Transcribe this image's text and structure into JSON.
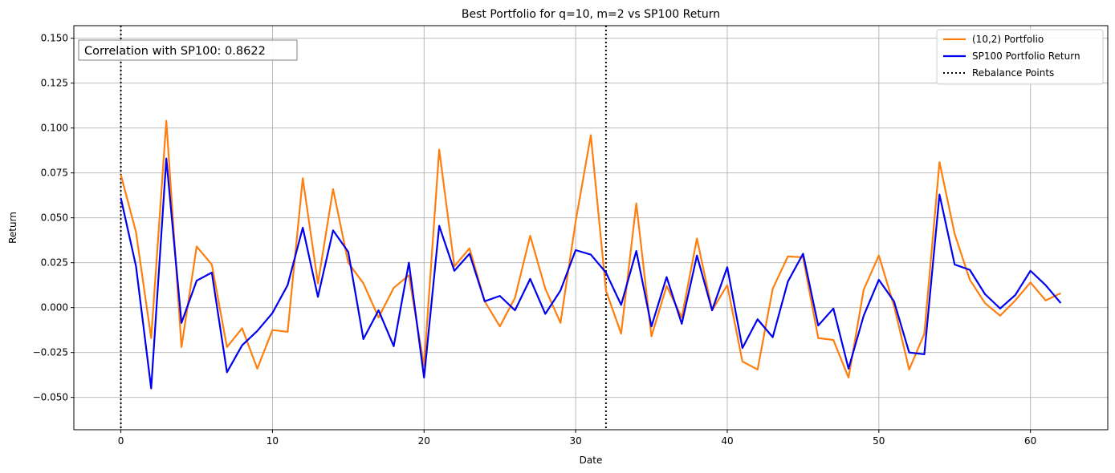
{
  "chart_data": {
    "type": "line",
    "title": "Best Portfolio for q=10, m=2 vs SP100 Return",
    "xlabel": "Date",
    "ylabel": "Return",
    "xlim": [
      -3.1,
      65.1
    ],
    "ylim": [
      -0.068,
      0.157
    ],
    "xticks": [
      0,
      10,
      20,
      30,
      40,
      50,
      60
    ],
    "yticks": [
      -0.05,
      -0.025,
      0.0,
      0.025,
      0.05,
      0.075,
      0.1,
      0.125,
      0.15
    ],
    "ytick_labels": [
      "−0.050",
      "−0.025",
      "0.000",
      "0.025",
      "0.050",
      "0.075",
      "0.100",
      "0.125",
      "0.150"
    ],
    "grid": true,
    "legend_position": "top-right",
    "annotation": "Correlation with SP100: 0.8622",
    "rebalance_points": [
      0,
      32
    ],
    "series": [
      {
        "name": "(10,2) Portfolio",
        "color": "#ff7f0e",
        "style": "solid",
        "values": [
          0.074,
          0.042,
          -0.017,
          0.104,
          -0.022,
          0.034,
          0.024,
          -0.022,
          -0.0115,
          -0.034,
          -0.0125,
          -0.0135,
          0.072,
          0.0135,
          0.066,
          0.025,
          0.0135,
          -0.0055,
          0.011,
          0.018,
          -0.0325,
          0.088,
          0.023,
          0.033,
          0.0035,
          -0.0105,
          0.0055,
          0.04,
          0.0105,
          -0.0085,
          0.048,
          0.096,
          0.0095,
          -0.0145,
          0.058,
          -0.016,
          0.012,
          -0.0055,
          0.0385,
          -0.0015,
          0.0125,
          -0.03,
          -0.0345,
          0.0105,
          0.0285,
          0.028,
          -0.017,
          -0.018,
          -0.039,
          0.01,
          0.029,
          0.001,
          -0.0345,
          -0.0145,
          0.081,
          0.041,
          0.0155,
          0.0025,
          -0.0045,
          0.004,
          0.014,
          0.004,
          0.008
        ]
      },
      {
        "name": "SP100 Portfolio Return",
        "color": "#0000ee",
        "style": "solid",
        "values": [
          0.061,
          0.023,
          -0.045,
          0.083,
          -0.0085,
          0.015,
          0.0195,
          -0.036,
          -0.021,
          -0.013,
          -0.003,
          0.0125,
          0.0445,
          0.006,
          0.043,
          0.031,
          -0.0175,
          -0.0015,
          -0.0215,
          0.025,
          -0.039,
          0.0455,
          0.0205,
          0.03,
          0.0035,
          0.0065,
          -0.0015,
          0.016,
          -0.0035,
          0.0095,
          0.032,
          0.0295,
          0.0195,
          0.0015,
          0.0315,
          -0.0105,
          0.017,
          -0.009,
          0.029,
          -0.0015,
          0.0225,
          -0.0225,
          -0.0065,
          -0.0165,
          0.0145,
          0.03,
          -0.01,
          -0.0005,
          -0.034,
          -0.0045,
          0.0155,
          0.0035,
          -0.025,
          -0.026,
          0.063,
          0.024,
          0.021,
          0.0075,
          -0.0005,
          0.007,
          0.0205,
          0.0125,
          0.0025
        ]
      }
    ],
    "rebalance_series": {
      "name": "Rebalance Points",
      "color": "#000000",
      "style": "dotted"
    }
  }
}
